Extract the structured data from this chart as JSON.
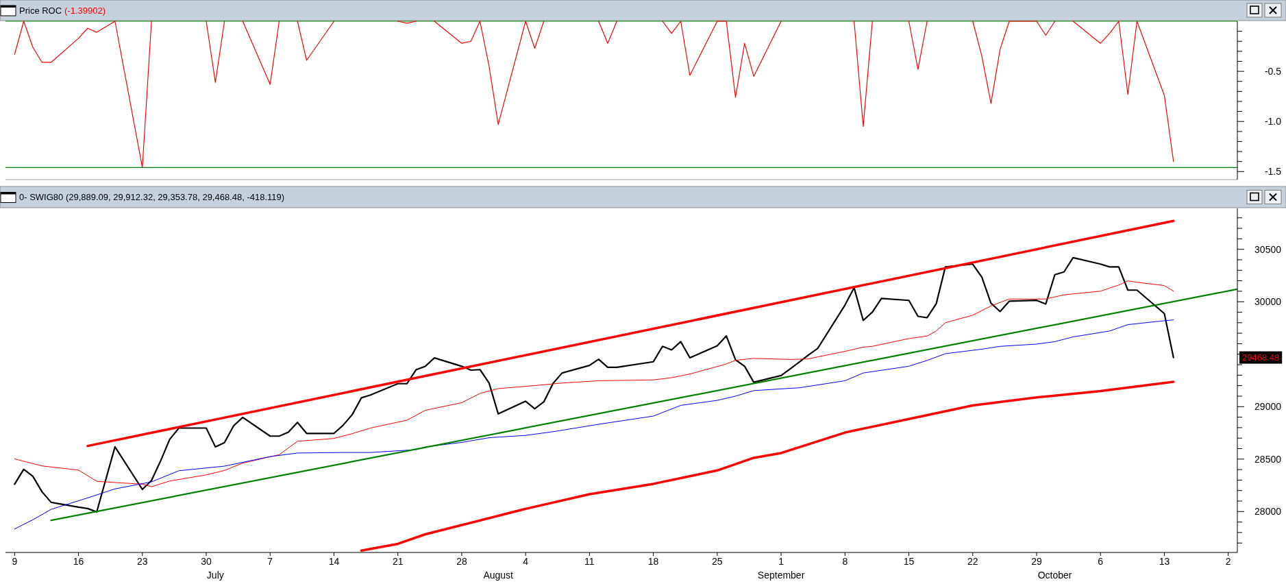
{
  "chart_data": [
    {
      "type": "line",
      "title": "Price ROC",
      "subtitle": "(-1.39902)",
      "x": [
        "--06-09",
        "--06-10",
        "--06-11",
        "--06-12",
        "--06-13",
        "--06-16",
        "--06-17",
        "--06-18",
        "--06-20",
        "--06-23",
        "--06-24",
        "--06-25",
        "--06-26",
        "--06-27",
        "--06-30",
        "--07-01",
        "--07-02",
        "--07-03",
        "--07-04",
        "--07-07",
        "--07-08",
        "--07-09",
        "--07-10",
        "--07-11",
        "--07-14",
        "--07-15",
        "--07-16",
        "--07-17",
        "--07-18",
        "--07-21",
        "--07-22",
        "--07-23",
        "--07-24",
        "--07-25",
        "--07-28",
        "--07-29",
        "--07-30",
        "--07-31",
        "--08-01",
        "--08-04",
        "--08-05",
        "--08-06",
        "--08-07",
        "--08-08",
        "--08-11",
        "--08-12",
        "--08-13",
        "--08-14",
        "--08-18",
        "--08-19",
        "--08-20",
        "--08-21",
        "--08-22",
        "--08-25",
        "--08-26",
        "--08-27",
        "--08-28",
        "--08-29",
        "--09-01",
        "--09-02",
        "--09-03",
        "--09-04",
        "--09-05",
        "--09-08",
        "--09-09",
        "--09-10",
        "--09-11",
        "--09-12",
        "--09-15",
        "--09-16",
        "--09-17",
        "--09-18",
        "--09-19",
        "--09-22",
        "--09-23",
        "--09-24",
        "--09-25",
        "--09-26",
        "--09-29",
        "--09-30",
        "--10-01",
        "--10-02",
        "--10-03",
        "--10-06",
        "--10-07",
        "--10-08",
        "--10-09",
        "--10-10",
        "--10-13",
        "--10-14"
      ],
      "series": [
        {
          "color": "#ff0000",
          "values": [
            -0.33,
            0,
            -0.26,
            -0.41,
            -0.41,
            -0.17,
            -0.07,
            -0.11,
            0,
            -1.46,
            0,
            null,
            null,
            null,
            0,
            -0.61,
            0,
            null,
            0,
            -0.63,
            0,
            null,
            0,
            -0.39,
            0,
            null,
            null,
            null,
            null,
            0,
            -0.02,
            0,
            null,
            0,
            -0.22,
            -0.2,
            0,
            -0.45,
            -1.03,
            0,
            -0.27,
            0,
            null,
            null,
            null,
            0,
            -0.22,
            0,
            null,
            0,
            -0.12,
            0,
            -0.54,
            0,
            0,
            -0.76,
            -0.22,
            -0.55,
            0,
            null,
            null,
            null,
            null,
            null,
            0,
            -1.05,
            0,
            null,
            0,
            -0.48,
            0,
            null,
            null,
            0,
            -0.35,
            -0.82,
            -0.28,
            0,
            0,
            -0.14,
            0,
            null,
            0,
            -0.22,
            -0.12,
            0,
            -0.73,
            0,
            -0.74,
            -1.39902
          ]
        }
      ],
      "xlim": [
        "--06-08",
        "--10-21"
      ],
      "ylim": [
        -1.58,
        0
      ],
      "yticks": [
        {
          "value": -0.1,
          "label": null
        },
        {
          "value": -0.2,
          "label": null
        },
        {
          "value": -0.3,
          "label": null
        },
        {
          "value": -0.4,
          "label": null
        },
        -0.5,
        {
          "value": -0.6,
          "label": null
        },
        {
          "value": -0.7,
          "label": null
        },
        {
          "value": -0.8,
          "label": null
        },
        {
          "value": -0.9,
          "label": null
        },
        {
          "value": -1,
          "label": "-1.0"
        },
        {
          "value": -1.1,
          "label": null
        },
        {
          "value": -1.2,
          "label": null
        },
        {
          "value": -1.3,
          "label": null
        },
        {
          "value": -1.4,
          "label": null
        },
        -1.5
      ],
      "ref_lines": [
        {
          "axis": "y",
          "value": 0,
          "color": "#008000"
        },
        {
          "axis": "y",
          "value": -1.46,
          "color": "#008000"
        }
      ],
      "tick_labels": "y"
    },
    {
      "type": "line",
      "title": "0- SWIG80 (29,889.09, 29,912.32, 29,353.78, 29,468.48, -418.119)",
      "x": [
        "--06-09",
        "--06-10",
        "--06-11",
        "--06-12",
        "--06-13",
        "--06-16",
        "--06-17",
        "--06-18",
        "--06-20",
        "--06-23",
        "--06-24",
        "--06-25",
        "--06-26",
        "--06-27",
        "--06-30",
        "--07-01",
        "--07-02",
        "--07-03",
        "--07-04",
        "--07-07",
        "--07-08",
        "--07-09",
        "--07-10",
        "--07-11",
        "--07-14",
        "--07-15",
        "--07-16",
        "--07-17",
        "--07-18",
        "--07-21",
        "--07-22",
        "--07-23",
        "--07-24",
        "--07-25",
        "--07-28",
        "--07-29",
        "--07-30",
        "--07-31",
        "--08-01",
        "--08-04",
        "--08-05",
        "--08-06",
        "--08-07",
        "--08-08",
        "--08-11",
        "--08-12",
        "--08-13",
        "--08-14",
        "--08-18",
        "--08-19",
        "--08-20",
        "--08-21",
        "--08-22",
        "--08-25",
        "--08-26",
        "--08-27",
        "--08-28",
        "--08-29",
        "--09-01",
        "--09-02",
        "--09-03",
        "--09-04",
        "--09-05",
        "--09-08",
        "--09-09",
        "--09-10",
        "--09-11",
        "--09-12",
        "--09-15",
        "--09-16",
        "--09-17",
        "--09-18",
        "--09-19",
        "--09-22",
        "--09-23",
        "--09-24",
        "--09-25",
        "--09-26",
        "--09-29",
        "--09-30",
        "--10-01",
        "--10-02",
        "--10-03",
        "--10-06",
        "--10-07",
        "--10-08",
        "--10-09",
        "--10-10",
        "--10-13",
        "--10-14"
      ],
      "series": [
        {
          "color": "#000000",
          "values": [
            28261,
            28403,
            28336,
            28189,
            28088,
            28042,
            28029,
            27997,
            28617,
            28211,
            28296,
            28483,
            28689,
            28796,
            28796,
            28617,
            28657,
            28817,
            28898,
            28719,
            28719,
            28756,
            28850,
            28745,
            28745,
            28823,
            28924,
            29084,
            29111,
            29219,
            29219,
            29352,
            29384,
            29465,
            29385,
            29348,
            29353,
            29225,
            28931,
            29052,
            28980,
            29046,
            29220,
            29321,
            29393,
            29452,
            29375,
            29375,
            29428,
            29575,
            29541,
            29620,
            29466,
            29580,
            29674,
            29447,
            29385,
            29233,
            29297,
            29361,
            29425,
            29492,
            29554,
            29968,
            30133,
            29822,
            29901,
            30031,
            30013,
            29861,
            29848,
            29981,
            30332,
            30359,
            30234,
            29986,
            29907,
            30005,
            30013,
            29978,
            30258,
            30284,
            30420,
            30359,
            30332,
            30332,
            30111,
            30111,
            29887,
            29468.48
          ]
        },
        {
          "color": "#ff0000",
          "x": [
            "--06-09",
            "--06-12",
            "--06-16",
            "--06-18",
            "--06-23",
            "--06-24",
            "--06-26",
            "--06-30",
            "--07-02",
            "--07-04",
            "--07-08",
            "--07-10",
            "--07-14",
            "--07-16",
            "--07-18",
            "--07-22",
            "--07-24",
            "--07-28",
            "--07-30",
            "--08-01",
            "--08-05",
            "--08-08",
            "--08-12",
            "--08-18",
            "--08-20",
            "--08-22",
            "--08-26",
            "--08-27",
            "--08-29",
            "--09-02",
            "--09-04",
            "--09-05",
            "--09-08",
            "--09-10",
            "--09-11",
            "--09-15",
            "--09-17",
            "--09-18",
            "--09-19",
            "--09-22",
            "--09-24",
            "--09-26",
            "--09-30",
            "--10-02",
            "--10-06",
            "--10-08",
            "--10-09",
            "--10-10",
            "--10-13",
            "--10-14"
          ],
          "values": [
            28502,
            28435,
            28395,
            28288,
            28261,
            28237,
            28291,
            28350,
            28392,
            28462,
            28542,
            28670,
            28697,
            28743,
            28796,
            28871,
            28965,
            29038,
            29126,
            29172,
            29201,
            29225,
            29247,
            29255,
            29276,
            29311,
            29407,
            29442,
            29460,
            29450,
            29455,
            29474,
            29527,
            29567,
            29575,
            29649,
            29673,
            29721,
            29800,
            29872,
            29960,
            30026,
            30026,
            30066,
            30101,
            30159,
            30199,
            30186,
            30154,
            30101
          ]
        },
        {
          "color": "#0000ff",
          "x": [
            "--06-09",
            "--06-11",
            "--06-13",
            "--06-17",
            "--06-20",
            "--06-24",
            "--06-27",
            "--07-02",
            "--07-07",
            "--07-10",
            "--07-15",
            "--07-18",
            "--07-23",
            "--07-24",
            "--07-28",
            "--07-31",
            "--08-04",
            "--08-07",
            "--08-12",
            "--08-18",
            "--08-21",
            "--08-25",
            "--08-27",
            "--08-29",
            "--09-03",
            "--09-08",
            "--09-10",
            "--09-15",
            "--09-17",
            "--09-19",
            "--09-23",
            "--09-25",
            "--09-29",
            "--10-01",
            "--10-03",
            "--10-07",
            "--10-09",
            "--10-13",
            "--10-14"
          ],
          "values": [
            27834,
            27922,
            28021,
            28130,
            28216,
            28283,
            28389,
            28433,
            28524,
            28558,
            28563,
            28563,
            28590,
            28616,
            28659,
            28704,
            28726,
            28761,
            28832,
            28910,
            29012,
            29060,
            29100,
            29153,
            29180,
            29247,
            29321,
            29385,
            29441,
            29505,
            29548,
            29575,
            29596,
            29620,
            29665,
            29721,
            29782,
            29819,
            29827
          ]
        },
        {
          "color": "#008000",
          "x": [
            "--06-13",
            "--10-21"
          ],
          "values": [
            27916,
            30120
          ]
        },
        {
          "color": "#ff0000",
          "x": [
            "--06-17",
            "--10-14"
          ],
          "values": [
            28625,
            30771
          ]
        },
        {
          "color": "#ff0000",
          "x": [
            "--07-17",
            "--07-21",
            "--07-24",
            "--07-28",
            "--08-04",
            "--08-11",
            "--08-18",
            "--08-25",
            "--08-29",
            "--09-01",
            "--09-08",
            "--09-15",
            "--09-22",
            "--09-29",
            "--10-06",
            "--10-14"
          ],
          "values": [
            27628,
            27692,
            27783,
            27871,
            28026,
            28165,
            28264,
            28392,
            28512,
            28558,
            28753,
            28883,
            29011,
            29088,
            29149,
            29237
          ]
        }
      ],
      "xlim": [
        "--06-08",
        "--10-21"
      ],
      "xticks": [
        {
          "value": "--06-09",
          "label": "9"
        },
        {
          "value": "--06-16",
          "label": "16"
        },
        {
          "value": "--06-23",
          "label": "23"
        },
        {
          "value": "--06-30",
          "label": "30"
        },
        {
          "value": "--07-07",
          "label": "7"
        },
        {
          "value": "--07-14",
          "label": "14"
        },
        {
          "value": "--07-21",
          "label": "21"
        },
        {
          "value": "--07-28",
          "label": "28"
        },
        {
          "value": "--08-04",
          "label": "4"
        },
        {
          "value": "--08-11",
          "label": "11"
        },
        {
          "value": "--08-18",
          "label": "18"
        },
        {
          "value": "--08-25",
          "label": "25"
        },
        {
          "value": "--09-01",
          "label": "1"
        },
        {
          "value": "--09-08",
          "label": "8"
        },
        {
          "value": "--09-15",
          "label": "15"
        },
        {
          "value": "--09-22",
          "label": "22"
        },
        {
          "value": "--09-29",
          "label": "29"
        },
        {
          "value": "--10-06",
          "label": "6"
        },
        {
          "value": "--10-13",
          "label": "13"
        },
        {
          "value": "--10-20",
          "label": "2"
        }
      ],
      "x2lim": [
        "--06-08",
        "--10-21"
      ],
      "x2ticks": [
        {
          "value": "--07-01",
          "label": "July"
        },
        {
          "value": "--08-01",
          "label": "August"
        },
        {
          "value": "--09-01",
          "label": "September"
        },
        {
          "value": "--10-01",
          "label": "October"
        }
      ],
      "ylim": [
        27610,
        30890
      ],
      "yticks": [
        {
          "value": 27700,
          "label": null
        },
        {
          "value": 27800,
          "label": null
        },
        {
          "value": 27900,
          "label": null
        },
        28000,
        {
          "value": 28100,
          "label": null
        },
        {
          "value": 28200,
          "label": null
        },
        {
          "value": 28300,
          "label": null
        },
        {
          "value": 28400,
          "label": null
        },
        28500,
        {
          "value": 28600,
          "label": null
        },
        {
          "value": 28700,
          "label": null
        },
        {
          "value": 28800,
          "label": null
        },
        {
          "value": 28900,
          "label": null
        },
        29000,
        {
          "value": 29100,
          "label": null
        },
        {
          "value": 29200,
          "label": null
        },
        {
          "value": 29300,
          "label": null
        },
        {
          "value": 29400,
          "label": null
        },
        {
          "value": 29500,
          "label": null
        },
        {
          "value": 29600,
          "label": null
        },
        {
          "value": 29700,
          "label": null
        },
        {
          "value": 29800,
          "label": null
        },
        {
          "value": 29900,
          "label": null
        },
        30000,
        {
          "value": 30100,
          "label": null
        },
        {
          "value": 30200,
          "label": null
        },
        {
          "value": 30300,
          "label": null
        },
        {
          "value": 30400,
          "label": null
        },
        30500,
        {
          "value": 30600,
          "label": null
        },
        {
          "value": 30700,
          "label": null
        },
        {
          "value": 30800,
          "label": null
        }
      ],
      "annotations": [
        "29468.48"
      ]
    }
  ]
}
